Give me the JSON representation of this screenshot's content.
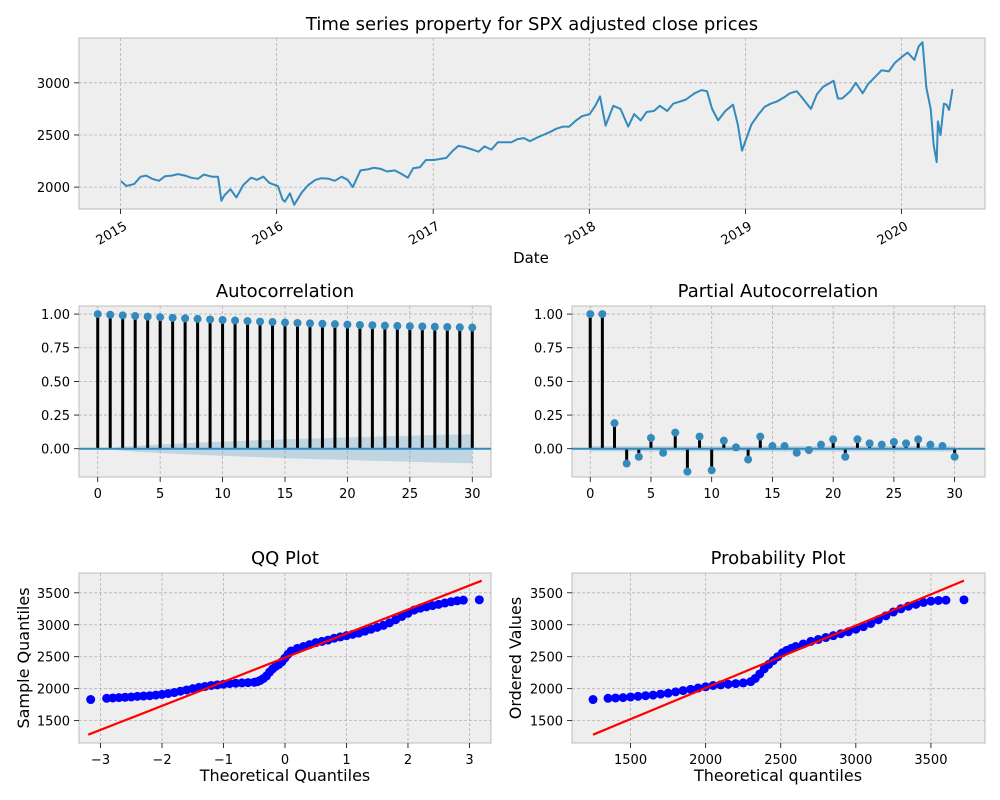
{
  "colors": {
    "axes_bg": "#eeeeee",
    "grid": "#b2b2b2",
    "spine": "#bcbcbc",
    "series": "#348abd",
    "stem": "#000000",
    "conf_band": "#348abd",
    "qq_points": "#0000ff",
    "qq_line": "#ff0000",
    "text": "#000000"
  },
  "chart_data": [
    {
      "id": "timeseries",
      "type": "line",
      "title": "Time series property for SPX adjusted close prices",
      "xlabel": "Date",
      "ylabel": "",
      "x_type": "date",
      "xlim": [
        "2014-09-26",
        "2020-07-14"
      ],
      "ylim": [
        1790,
        3430
      ],
      "xticks": [
        "2015",
        "2016",
        "2017",
        "2018",
        "2019",
        "2020"
      ],
      "yticks": [
        2000,
        2500,
        3000
      ],
      "grid": true,
      "series": [
        {
          "x": [
            "2015-01-02",
            "2015-01-15",
            "2015-02-02",
            "2015-02-17",
            "2015-03-02",
            "2015-03-16",
            "2015-04-01",
            "2015-04-15",
            "2015-05-01",
            "2015-05-15",
            "2015-06-01",
            "2015-06-15",
            "2015-07-01",
            "2015-07-15",
            "2015-08-03",
            "2015-08-17",
            "2015-08-25",
            "2015-09-01",
            "2015-09-15",
            "2015-09-29",
            "2015-10-15",
            "2015-11-02",
            "2015-11-16",
            "2015-12-01",
            "2015-12-15",
            "2016-01-04",
            "2016-01-15",
            "2016-01-20",
            "2016-02-01",
            "2016-02-11",
            "2016-02-29",
            "2016-03-15",
            "2016-04-01",
            "2016-04-15",
            "2016-05-02",
            "2016-05-16",
            "2016-06-01",
            "2016-06-15",
            "2016-06-27",
            "2016-07-15",
            "2016-08-01",
            "2016-08-15",
            "2016-09-01",
            "2016-09-15",
            "2016-10-03",
            "2016-10-17",
            "2016-11-03",
            "2016-11-15",
            "2016-12-01",
            "2016-12-15",
            "2017-01-03",
            "2017-01-17",
            "2017-02-01",
            "2017-02-15",
            "2017-03-01",
            "2017-03-15",
            "2017-04-03",
            "2017-04-17",
            "2017-05-01",
            "2017-05-17",
            "2017-06-01",
            "2017-06-15",
            "2017-07-03",
            "2017-07-17",
            "2017-08-01",
            "2017-08-15",
            "2017-09-01",
            "2017-09-15",
            "2017-10-02",
            "2017-10-16",
            "2017-11-01",
            "2017-11-15",
            "2017-12-01",
            "2017-12-15",
            "2018-01-02",
            "2018-01-15",
            "2018-01-26",
            "2018-02-08",
            "2018-02-26",
            "2018-03-15",
            "2018-04-02",
            "2018-04-16",
            "2018-05-01",
            "2018-05-15",
            "2018-06-01",
            "2018-06-15",
            "2018-07-02",
            "2018-07-16",
            "2018-08-01",
            "2018-08-15",
            "2018-09-04",
            "2018-09-20",
            "2018-10-03",
            "2018-10-15",
            "2018-10-29",
            "2018-11-15",
            "2018-12-03",
            "2018-12-14",
            "2018-12-24",
            "2019-01-15",
            "2019-02-01",
            "2019-02-15",
            "2019-03-01",
            "2019-03-15",
            "2019-04-01",
            "2019-04-15",
            "2019-05-01",
            "2019-05-15",
            "2019-06-03",
            "2019-06-17",
            "2019-07-01",
            "2019-07-26",
            "2019-08-05",
            "2019-08-15",
            "2019-09-03",
            "2019-09-16",
            "2019-10-02",
            "2019-10-15",
            "2019-11-01",
            "2019-11-15",
            "2019-12-02",
            "2019-12-16",
            "2020-01-02",
            "2020-01-15",
            "2020-01-31",
            "2020-02-10",
            "2020-02-19",
            "2020-02-28",
            "2020-03-09",
            "2020-03-16",
            "2020-03-23",
            "2020-03-26",
            "2020-04-01",
            "2020-04-09",
            "2020-04-15",
            "2020-04-21",
            "2020-04-29"
          ],
          "y": [
            2058,
            2011,
            2030,
            2100,
            2110,
            2080,
            2060,
            2105,
            2110,
            2125,
            2110,
            2090,
            2080,
            2120,
            2100,
            2100,
            1870,
            1920,
            1980,
            1900,
            2020,
            2090,
            2070,
            2100,
            2040,
            2010,
            1880,
            1860,
            1940,
            1830,
            1950,
            2020,
            2070,
            2085,
            2080,
            2060,
            2100,
            2070,
            2000,
            2160,
            2170,
            2185,
            2175,
            2150,
            2160,
            2130,
            2090,
            2180,
            2190,
            2260,
            2260,
            2270,
            2280,
            2345,
            2395,
            2385,
            2360,
            2340,
            2390,
            2360,
            2430,
            2430,
            2430,
            2460,
            2470,
            2440,
            2475,
            2500,
            2530,
            2560,
            2580,
            2580,
            2640,
            2680,
            2700,
            2780,
            2870,
            2590,
            2780,
            2750,
            2580,
            2700,
            2640,
            2720,
            2730,
            2780,
            2730,
            2800,
            2820,
            2840,
            2900,
            2930,
            2920,
            2750,
            2640,
            2730,
            2790,
            2600,
            2350,
            2600,
            2700,
            2770,
            2800,
            2820,
            2860,
            2900,
            2920,
            2850,
            2750,
            2890,
            2960,
            3020,
            2850,
            2850,
            2920,
            3000,
            2900,
            2990,
            3060,
            3120,
            3110,
            3190,
            3250,
            3290,
            3220,
            3350,
            3390,
            2950,
            2750,
            2400,
            2240,
            2630,
            2500,
            2800,
            2790,
            2740,
            2940
          ]
        }
      ]
    },
    {
      "id": "acf",
      "type": "stem",
      "title": "Autocorrelation",
      "xlabel": "",
      "ylabel": "",
      "xlim": [
        -1.5,
        31.5
      ],
      "ylim": [
        -0.21,
        1.06
      ],
      "xticks": [
        0,
        5,
        10,
        15,
        20,
        25,
        30
      ],
      "yticks": [
        "0.00",
        "0.25",
        "0.50",
        "0.75",
        "1.00"
      ],
      "grid": true,
      "lags": [
        0,
        1,
        2,
        3,
        4,
        5,
        6,
        7,
        8,
        9,
        10,
        11,
        12,
        13,
        14,
        15,
        16,
        17,
        18,
        19,
        20,
        21,
        22,
        23,
        24,
        25,
        26,
        27,
        28,
        29,
        30
      ],
      "values": [
        1.0,
        0.995,
        0.99,
        0.986,
        0.981,
        0.977,
        0.972,
        0.968,
        0.964,
        0.96,
        0.956,
        0.952,
        0.948,
        0.944,
        0.941,
        0.937,
        0.934,
        0.931,
        0.928,
        0.925,
        0.922,
        0.919,
        0.917,
        0.914,
        0.912,
        0.91,
        0.908,
        0.906,
        0.904,
        0.902,
        0.9
      ],
      "confidence_band": [
        0.0,
        0.0,
        0.015,
        0.021,
        0.027,
        0.032,
        0.036,
        0.041,
        0.045,
        0.049,
        0.053,
        0.056,
        0.06,
        0.063,
        0.066,
        0.07,
        0.073,
        0.076,
        0.078,
        0.081,
        0.084,
        0.087,
        0.089,
        0.092,
        0.094,
        0.097,
        0.099,
        0.102,
        0.104,
        0.106,
        0.108
      ]
    },
    {
      "id": "pacf",
      "type": "stem",
      "title": "Partial Autocorrelation",
      "xlabel": "",
      "ylabel": "",
      "xlim": [
        -1.5,
        32.5
      ],
      "ylim": [
        -0.21,
        1.06
      ],
      "xticks": [
        0,
        5,
        10,
        15,
        20,
        25,
        30
      ],
      "yticks": [
        "0.00",
        "0.25",
        "0.50",
        "0.75",
        "1.00"
      ],
      "grid": true,
      "lags": [
        0,
        1,
        2,
        3,
        4,
        5,
        6,
        7,
        8,
        9,
        10,
        11,
        12,
        13,
        14,
        15,
        16,
        17,
        18,
        19,
        20,
        21,
        22,
        23,
        24,
        25,
        26,
        27,
        28,
        29,
        30
      ],
      "values": [
        1.0,
        1.0,
        0.19,
        -0.11,
        -0.06,
        0.08,
        -0.03,
        0.12,
        -0.17,
        0.09,
        -0.16,
        0.06,
        0.01,
        -0.08,
        0.09,
        0.02,
        0.02,
        -0.03,
        -0.01,
        0.03,
        0.07,
        -0.06,
        0.07,
        0.04,
        0.03,
        0.05,
        0.04,
        0.07,
        0.03,
        0.02,
        -0.06
      ],
      "confidence_band": 0.02
    },
    {
      "id": "qq",
      "type": "scatter",
      "title": "QQ Plot",
      "xlabel": "Theoretical Quantiles",
      "ylabel": "Sample Quantiles",
      "xlim": [
        -3.35,
        3.35
      ],
      "ylim": [
        1150,
        3810
      ],
      "xticks": [
        -3,
        -2,
        -1,
        0,
        1,
        2,
        3
      ],
      "xtick_labels": [
        "−3",
        "−2",
        "−1",
        "0",
        "1",
        "2",
        "3"
      ],
      "yticks": [
        1500,
        2000,
        2500,
        3000,
        3500
      ],
      "grid": true,
      "points": {
        "x": [
          -3.16,
          -2.9,
          -2.8,
          -2.7,
          -2.6,
          -2.5,
          -2.4,
          -2.3,
          -2.2,
          -2.1,
          -2.0,
          -1.9,
          -1.8,
          -1.7,
          -1.6,
          -1.5,
          -1.4,
          -1.3,
          -1.2,
          -1.1,
          -1.0,
          -0.9,
          -0.8,
          -0.7,
          -0.6,
          -0.5,
          -0.45,
          -0.4,
          -0.35,
          -0.3,
          -0.25,
          -0.2,
          -0.15,
          -0.1,
          -0.05,
          0.0,
          0.05,
          0.1,
          0.2,
          0.3,
          0.4,
          0.5,
          0.6,
          0.7,
          0.8,
          0.9,
          1.0,
          1.1,
          1.2,
          1.3,
          1.4,
          1.5,
          1.6,
          1.7,
          1.8,
          1.9,
          2.0,
          2.1,
          2.2,
          2.3,
          2.4,
          2.5,
          2.6,
          2.7,
          2.8,
          2.9,
          3.16
        ],
        "y": [
          1830,
          1850,
          1855,
          1860,
          1865,
          1870,
          1880,
          1885,
          1890,
          1900,
          1910,
          1925,
          1940,
          1960,
          1980,
          2000,
          2020,
          2035,
          2050,
          2060,
          2070,
          2080,
          2085,
          2090,
          2095,
          2100,
          2110,
          2130,
          2160,
          2200,
          2260,
          2310,
          2350,
          2380,
          2420,
          2480,
          2540,
          2590,
          2630,
          2660,
          2690,
          2720,
          2740,
          2760,
          2790,
          2810,
          2830,
          2850,
          2870,
          2900,
          2930,
          2960,
          2990,
          3030,
          3080,
          3130,
          3180,
          3230,
          3260,
          3280,
          3300,
          3320,
          3340,
          3360,
          3375,
          3385,
          3390
        ]
      },
      "line": {
        "x": [
          -3.2,
          3.2
        ],
        "y": [
          1280,
          3690
        ]
      }
    },
    {
      "id": "probplot",
      "type": "scatter",
      "title": "Probability Plot",
      "xlabel": "Theoretical quantiles",
      "ylabel": "Ordered Values",
      "xlim": [
        1110,
        3860
      ],
      "ylim": [
        1150,
        3810
      ],
      "xticks": [
        1500,
        2000,
        2500,
        3000,
        3500
      ],
      "yticks": [
        1500,
        2000,
        2500,
        3000,
        3500
      ],
      "grid": true,
      "points": {
        "x": [
          1250,
          1350,
          1400,
          1450,
          1500,
          1550,
          1600,
          1650,
          1700,
          1750,
          1800,
          1850,
          1900,
          1950,
          2000,
          2050,
          2100,
          2150,
          2200,
          2250,
          2300,
          2330,
          2360,
          2390,
          2420,
          2450,
          2480,
          2510,
          2540,
          2570,
          2600,
          2650,
          2700,
          2750,
          2800,
          2850,
          2900,
          2950,
          3000,
          3050,
          3100,
          3150,
          3200,
          3250,
          3300,
          3350,
          3400,
          3450,
          3500,
          3550,
          3600,
          3720
        ],
        "y": [
          1830,
          1850,
          1855,
          1860,
          1870,
          1880,
          1890,
          1900,
          1915,
          1930,
          1950,
          1970,
          1990,
          2010,
          2030,
          2050,
          2060,
          2070,
          2080,
          2090,
          2110,
          2160,
          2230,
          2310,
          2380,
          2440,
          2500,
          2560,
          2600,
          2630,
          2660,
          2700,
          2740,
          2770,
          2800,
          2830,
          2860,
          2890,
          2930,
          2970,
          3020,
          3080,
          3140,
          3200,
          3250,
          3290,
          3320,
          3350,
          3370,
          3380,
          3385,
          3390
        ]
      },
      "line": {
        "x": [
          1250,
          3720
        ],
        "y": [
          1280,
          3690
        ]
      }
    }
  ]
}
